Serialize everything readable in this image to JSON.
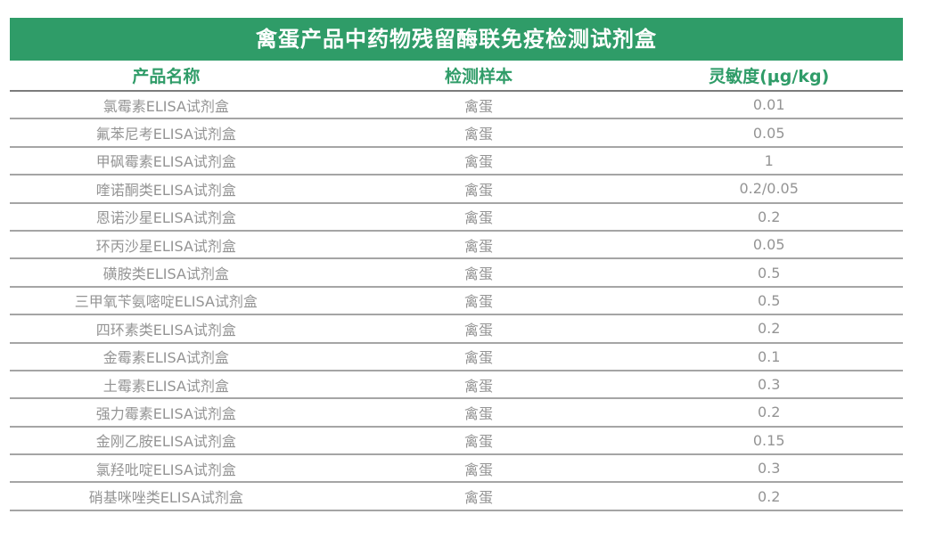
{
  "banner": {
    "title": "禽蛋产品中药物残留酶联免疫检测试剂盒"
  },
  "chart_data": {
    "type": "table",
    "title": "禽蛋产品中药物残留酶联免疫检测试剂盒",
    "columns": [
      "产品名称",
      "检测样本",
      "灵敏度(μg/kg)"
    ],
    "rows": [
      [
        "氯霉素ELISA试剂盒",
        "禽蛋",
        "0.01"
      ],
      [
        "氟苯尼考ELISA试剂盒",
        "禽蛋",
        "0.05"
      ],
      [
        "甲砜霉素ELISA试剂盒",
        "禽蛋",
        "1"
      ],
      [
        "喹诺酮类ELISA试剂盒",
        "禽蛋",
        "0.2/0.05"
      ],
      [
        "恩诺沙星ELISA试剂盒",
        "禽蛋",
        "0.2"
      ],
      [
        "环丙沙星ELISA试剂盒",
        "禽蛋",
        "0.05"
      ],
      [
        "磺胺类ELISA试剂盒",
        "禽蛋",
        "0.5"
      ],
      [
        "三甲氧苄氨嘧啶ELISA试剂盒",
        "禽蛋",
        "0.5"
      ],
      [
        "四环素类ELISA试剂盒",
        "禽蛋",
        "0.2"
      ],
      [
        "金霉素ELISA试剂盒",
        "禽蛋",
        "0.1"
      ],
      [
        "土霉素ELISA试剂盒",
        "禽蛋",
        "0.3"
      ],
      [
        "强力霉素ELISA试剂盒",
        "禽蛋",
        "0.2"
      ],
      [
        "金刚乙胺ELISA试剂盒",
        "禽蛋",
        "0.15"
      ],
      [
        "氯羟吡啶ELISA试剂盒",
        "禽蛋",
        "0.3"
      ],
      [
        "硝基咪唑类ELISA试剂盒",
        "禽蛋",
        "0.2"
      ]
    ]
  },
  "colors": {
    "brand_green": "#2f9c68",
    "banner_text": "#ffffff",
    "header_text": "#2f9c68",
    "body_text": "#949494",
    "header_rule": "#7c7c7c",
    "row_rule": "#a5a5a5",
    "background": "#ffffff"
  }
}
